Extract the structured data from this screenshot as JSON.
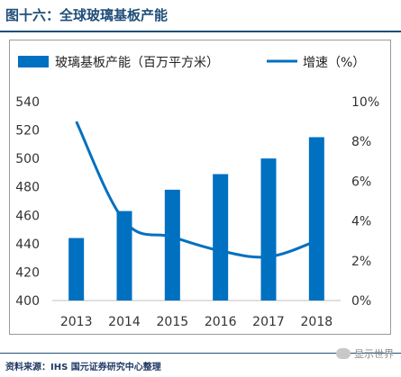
{
  "title": "图十六：全球玻璃基板产能",
  "source": "资料来源：IHS    国元证券研究中心整理",
  "watermark": "显示世界",
  "chart_data": {
    "type": "bar+line",
    "categories": [
      "2013",
      "2014",
      "2015",
      "2016",
      "2017",
      "2018"
    ],
    "series": [
      {
        "name": "玻璃基板产能（百万平方米）",
        "type": "bar",
        "axis": "left",
        "values": [
          444,
          463,
          478,
          489,
          500,
          515
        ]
      },
      {
        "name": "增速（%）",
        "type": "line",
        "axis": "right",
        "values": [
          9.0,
          4.0,
          3.2,
          2.5,
          2.2,
          3.0
        ]
      }
    ],
    "left_axis": {
      "ylim": [
        400,
        540
      ],
      "ticks": [
        "400",
        "420",
        "440",
        "460",
        "480",
        "500",
        "520",
        "540"
      ]
    },
    "right_axis": {
      "ylim": [
        0,
        10
      ],
      "ticks": [
        "0%",
        "2%",
        "4%",
        "6%",
        "8%",
        "10%"
      ]
    },
    "legend_position": "top",
    "grid": false,
    "colors": {
      "bar": "#0070c0",
      "line": "#0070c0"
    }
  }
}
